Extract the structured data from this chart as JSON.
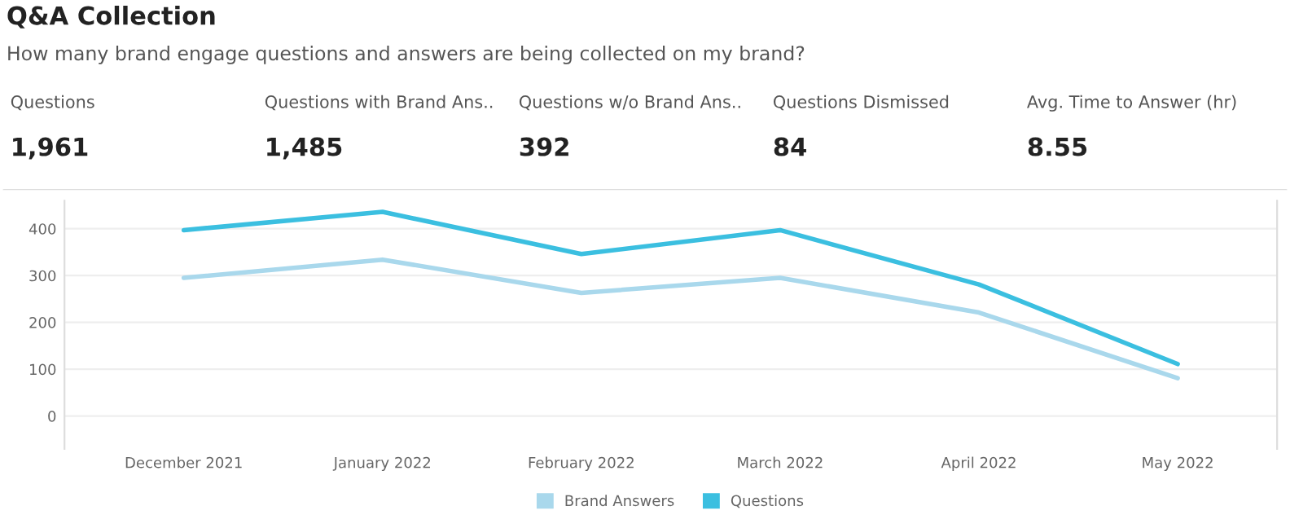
{
  "chart_data": [
    {
      "type": "other",
      "title": "Q&A Collection",
      "subtitle": "How many brand engage questions and answers are being collected on my brand?",
      "annotations": [
        "Questions",
        "1,961",
        "Questions with Brand Ans..",
        "1,485",
        "Questions w/o Brand Ans..",
        "392",
        "Questions Dismissed",
        "84",
        "Avg. Time to Answer (hr)",
        "8.55"
      ]
    },
    {
      "type": "line",
      "categories": [
        "December 2021",
        "January 2022",
        "February 2022",
        "March 2022",
        "April 2022",
        "May 2022"
      ],
      "series": [
        {
          "name": "Brand Answers",
          "color": "#a9d8ec",
          "values": [
            295,
            334,
            263,
            295,
            221,
            81
          ]
        },
        {
          "name": "Questions",
          "color": "#3bbfe0",
          "values": [
            397,
            436,
            346,
            397,
            281,
            111
          ]
        }
      ],
      "ylim": [
        -70,
        460
      ],
      "yticks": [
        0,
        100,
        200,
        300,
        400
      ],
      "grid": "y",
      "legend": "bottom",
      "marker": "none",
      "line_style": "solid"
    }
  ]
}
